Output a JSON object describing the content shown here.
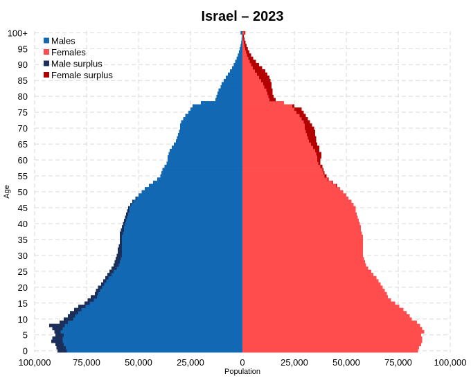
{
  "chart_data": {
    "type": "bar",
    "orientation": "horizontal-population-pyramid",
    "title": "Israel – 2023",
    "xlabel": "Population",
    "ylabel": "Age",
    "xlim": [
      -100000,
      100000
    ],
    "ylim": [
      0,
      100
    ],
    "x_ticks": [
      {
        "value": -100000,
        "label": "100,000"
      },
      {
        "value": -75000,
        "label": "75,000"
      },
      {
        "value": -50000,
        "label": "50,000"
      },
      {
        "value": -25000,
        "label": "25,000"
      },
      {
        "value": 0,
        "label": "0"
      },
      {
        "value": 25000,
        "label": "25,000"
      },
      {
        "value": 50000,
        "label": "50,000"
      },
      {
        "value": 75000,
        "label": "75,000"
      },
      {
        "value": 100000,
        "label": "100,000"
      }
    ],
    "y_ticks": [
      {
        "value": 0,
        "label": "0"
      },
      {
        "value": 5,
        "label": "5"
      },
      {
        "value": 10,
        "label": "10"
      },
      {
        "value": 15,
        "label": "15"
      },
      {
        "value": 20,
        "label": "20"
      },
      {
        "value": 25,
        "label": "25"
      },
      {
        "value": 30,
        "label": "30"
      },
      {
        "value": 35,
        "label": "35"
      },
      {
        "value": 40,
        "label": "40"
      },
      {
        "value": 45,
        "label": "45"
      },
      {
        "value": 50,
        "label": "50"
      },
      {
        "value": 55,
        "label": "55"
      },
      {
        "value": 60,
        "label": "60"
      },
      {
        "value": 65,
        "label": "65"
      },
      {
        "value": 70,
        "label": "70"
      },
      {
        "value": 75,
        "label": "75"
      },
      {
        "value": 80,
        "label": "80"
      },
      {
        "value": 85,
        "label": "85"
      },
      {
        "value": 90,
        "label": "90"
      },
      {
        "value": 95,
        "label": "95"
      },
      {
        "value": 100,
        "label": "100+"
      }
    ],
    "legend_position": "top-left",
    "legend": [
      {
        "name": "Males",
        "color": "#1268b3"
      },
      {
        "name": "Females",
        "color": "#ff4d4d"
      },
      {
        "name": "Male surplus",
        "color": "#1b2f5a"
      },
      {
        "name": "Female surplus",
        "color": "#b30000"
      }
    ],
    "colors": {
      "male": "#1268b3",
      "female": "#ff4d4d",
      "male_surplus": "#1b2f5a",
      "female_surplus": "#b30000"
    },
    "ages": [
      0,
      1,
      2,
      3,
      4,
      5,
      6,
      7,
      8,
      9,
      10,
      11,
      12,
      13,
      14,
      15,
      16,
      17,
      18,
      19,
      20,
      21,
      22,
      23,
      24,
      25,
      26,
      27,
      28,
      29,
      30,
      31,
      32,
      33,
      34,
      35,
      36,
      37,
      38,
      39,
      40,
      41,
      42,
      43,
      44,
      45,
      46,
      47,
      48,
      49,
      50,
      51,
      52,
      53,
      54,
      55,
      56,
      57,
      58,
      59,
      60,
      61,
      62,
      63,
      64,
      65,
      66,
      67,
      68,
      69,
      70,
      71,
      72,
      73,
      74,
      75,
      76,
      77,
      78,
      79,
      80,
      81,
      82,
      83,
      84,
      85,
      86,
      87,
      88,
      89,
      90,
      91,
      92,
      93,
      94,
      95,
      96,
      97,
      98,
      99,
      100
    ],
    "series": [
      {
        "name": "Males",
        "values": [
          89000,
          89500,
          90000,
          92000,
          91500,
          90000,
          90500,
          91500,
          93000,
          88000,
          86000,
          84000,
          83000,
          81000,
          79000,
          76000,
          74500,
          73000,
          71000,
          70500,
          69500,
          68000,
          67000,
          66000,
          65000,
          64000,
          63000,
          62000,
          61500,
          61000,
          60500,
          60000,
          60000,
          59500,
          59000,
          59000,
          59000,
          59000,
          58500,
          58000,
          57500,
          57000,
          56500,
          56000,
          55500,
          55000,
          54000,
          53000,
          51500,
          50000,
          48500,
          47000,
          45000,
          43000,
          41000,
          39500,
          39000,
          38500,
          37500,
          36500,
          36000,
          36000,
          35500,
          35000,
          34000,
          33000,
          32000,
          31500,
          31000,
          30500,
          30000,
          30000,
          29500,
          28500,
          27500,
          26000,
          25000,
          24000,
          20000,
          13000,
          12500,
          12000,
          11500,
          10500,
          10000,
          9000,
          8000,
          7000,
          6000,
          5000,
          4200,
          3500,
          2800,
          2200,
          1700,
          1300,
          900,
          600,
          400,
          300,
          900
        ]
      },
      {
        "name": "Females",
        "values": [
          84500,
          85000,
          86000,
          86500,
          86500,
          86000,
          87500,
          86500,
          85500,
          84000,
          81500,
          80500,
          79000,
          77500,
          75500,
          73500,
          71500,
          70000,
          69500,
          68500,
          67500,
          66500,
          65500,
          64500,
          63000,
          62000,
          60500,
          59500,
          59000,
          58500,
          58000,
          58000,
          58000,
          58000,
          58000,
          58000,
          58000,
          57500,
          57000,
          57000,
          56500,
          56000,
          55500,
          55000,
          54500,
          54500,
          53500,
          52500,
          51000,
          50000,
          48500,
          47000,
          45500,
          43500,
          41500,
          40500,
          39500,
          39000,
          38500,
          37500,
          37500,
          38000,
          38000,
          37000,
          37000,
          36000,
          35500,
          35500,
          35000,
          35000,
          34500,
          33500,
          32500,
          31500,
          30500,
          29500,
          28500,
          25000,
          20000,
          16000,
          15000,
          14500,
          14500,
          14000,
          14000,
          13500,
          13000,
          12000,
          11000,
          9500,
          8000,
          6500,
          5200,
          4200,
          3300,
          2600,
          2000,
          1500,
          1000,
          700,
          1400
        ]
      }
    ]
  }
}
